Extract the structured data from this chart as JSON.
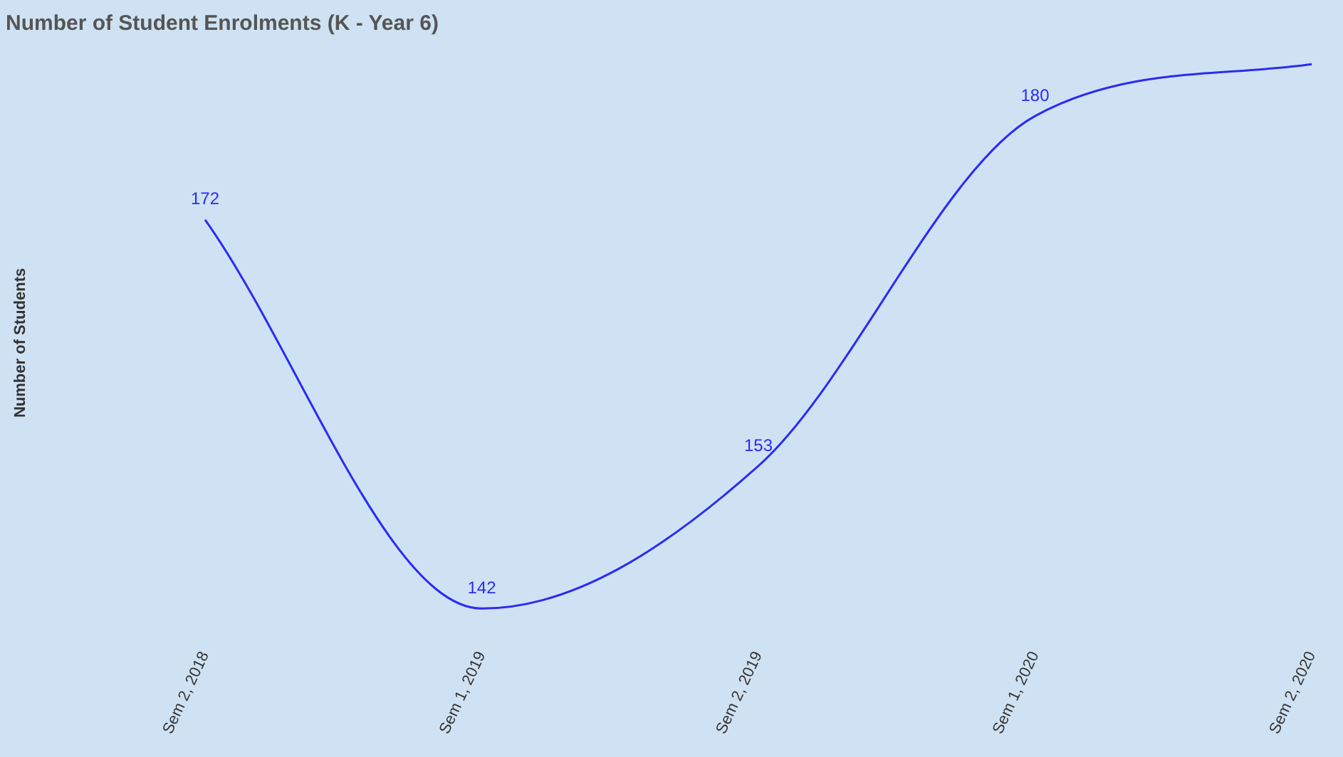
{
  "chart_data": {
    "type": "line",
    "title": "Number of Student Enrolments (K - Year 6)",
    "ylabel": "Number of Students",
    "categories": [
      "Sem 2, 2018",
      "Sem 1, 2019",
      "Sem 2, 2019",
      "Sem 1, 2020",
      "Sem 2, 2020"
    ],
    "series": [
      {
        "color": "#2b2bf5",
        "values": [
          172,
          142,
          153,
          180,
          184
        ],
        "value_labels": [
          "172",
          "142",
          "153",
          "180",
          null
        ]
      }
    ],
    "tick_labels": "x",
    "grid": false,
    "legend": false,
    "marker": "none",
    "line_style": "solid"
  }
}
